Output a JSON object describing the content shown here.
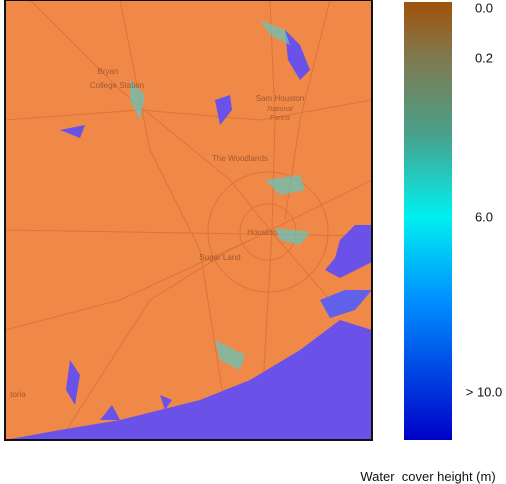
{
  "map": {
    "places": [
      "Bryan",
      "College Station",
      "Sam Houston",
      "National",
      "Forest",
      "The Woodlands",
      "Houston",
      "Sugar Land",
      "toria"
    ]
  },
  "colorbar": {
    "ticks": [
      "0.0",
      "0.2",
      "6.0",
      "> 10.0"
    ],
    "label": "Water  cover height (m)"
  }
}
